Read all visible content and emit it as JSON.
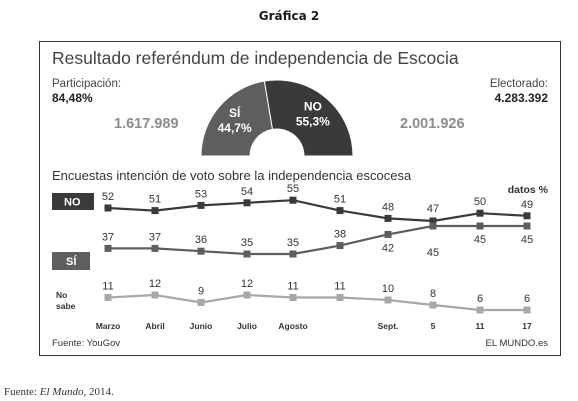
{
  "figure_heading": "Gráfica 2",
  "chart_data": [
    {
      "type": "pie",
      "variant": "half-donut",
      "title": "Resultado referéndum de independencia de Escocia",
      "participation_label": "Participación:",
      "participation_value": "84,48%",
      "electorate_label": "Electorado:",
      "electorate_value": "4.283.392",
      "slices": [
        {
          "name": "SÍ",
          "percent": 44.7,
          "percent_label": "44,7%",
          "votes": 1617989,
          "votes_label": "1.617.989",
          "color": "#5e5e5e"
        },
        {
          "name": "NO",
          "percent": 55.3,
          "percent_label": "55,3%",
          "votes": 2001926,
          "votes_label": "2.001.926",
          "color": "#3a3a3a"
        }
      ]
    },
    {
      "type": "line",
      "title": "Encuestas intención de voto sobre la independencia escocesa",
      "units": "datos %",
      "categories": [
        "Marzo",
        "Abril",
        "Junio",
        "Julio",
        "Agosto",
        "",
        "Sept.",
        "5",
        "11",
        "17"
      ],
      "series": [
        {
          "name": "NO",
          "values": [
            52,
            51,
            53,
            54,
            55,
            51,
            48,
            47,
            50,
            49
          ],
          "color": "#3a3a3a"
        },
        {
          "name": "SÍ",
          "values": [
            37,
            37,
            36,
            35,
            35,
            38,
            42,
            45,
            45,
            45
          ],
          "color": "#5e5e5e"
        },
        {
          "name": "No sabe",
          "values": [
            11,
            12,
            9,
            12,
            11,
            11,
            10,
            8,
            6,
            6
          ],
          "color": "#a8a8a8"
        }
      ]
    }
  ],
  "series_label_no": "NO",
  "series_label_si": "SÍ",
  "series_label_ns_1": "No",
  "series_label_ns_2": "sabe",
  "source": "Fuente: YouGov",
  "brand": "EL MUNDO.es",
  "footer": {
    "prefix": "Fuente: ",
    "publication": "El Mundo",
    "suffix": ", 2014."
  }
}
